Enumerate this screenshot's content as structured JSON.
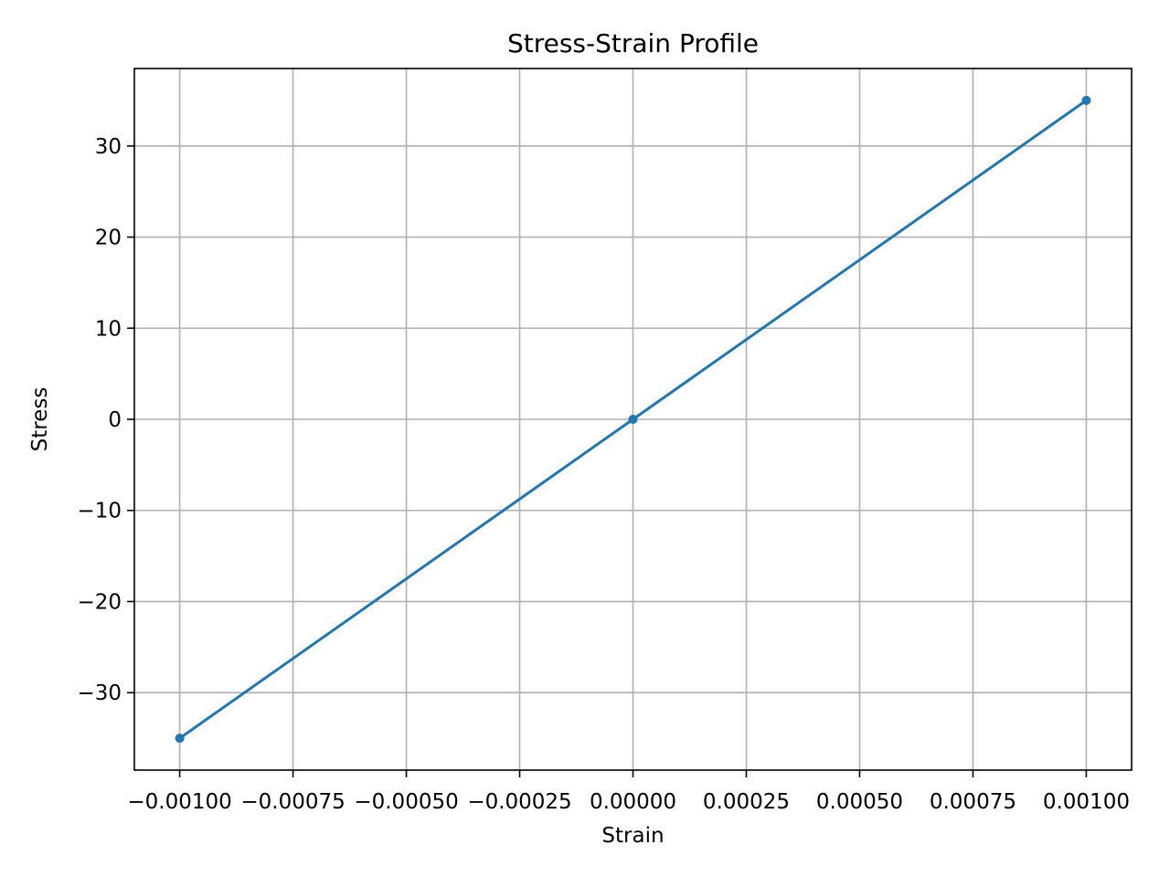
{
  "chart_data": {
    "type": "line",
    "title": "Stress-Strain Profile",
    "xlabel": "Strain",
    "ylabel": "Stress",
    "xlim": [
      -0.0011,
      0.0011
    ],
    "ylim": [
      -38.5,
      38.5
    ],
    "grid": true,
    "x_ticks": [
      -0.001,
      -0.00075,
      -0.0005,
      -0.00025,
      0.0,
      0.00025,
      0.0005,
      0.00075,
      0.001
    ],
    "x_tick_labels": [
      "−0.00100",
      "−0.00075",
      "−0.00050",
      "−0.00025",
      "0.00000",
      "0.00025",
      "0.00050",
      "0.00075",
      "0.00100"
    ],
    "y_ticks": [
      -30,
      -20,
      -10,
      0,
      10,
      20,
      30
    ],
    "y_tick_labels": [
      "−30",
      "−20",
      "−10",
      "0",
      "10",
      "20",
      "30"
    ],
    "series": [
      {
        "x": [
          -0.001,
          0.0,
          0.001
        ],
        "y": [
          -35,
          0,
          35
        ],
        "color": "#1f77b4",
        "marker": "circle"
      }
    ]
  }
}
